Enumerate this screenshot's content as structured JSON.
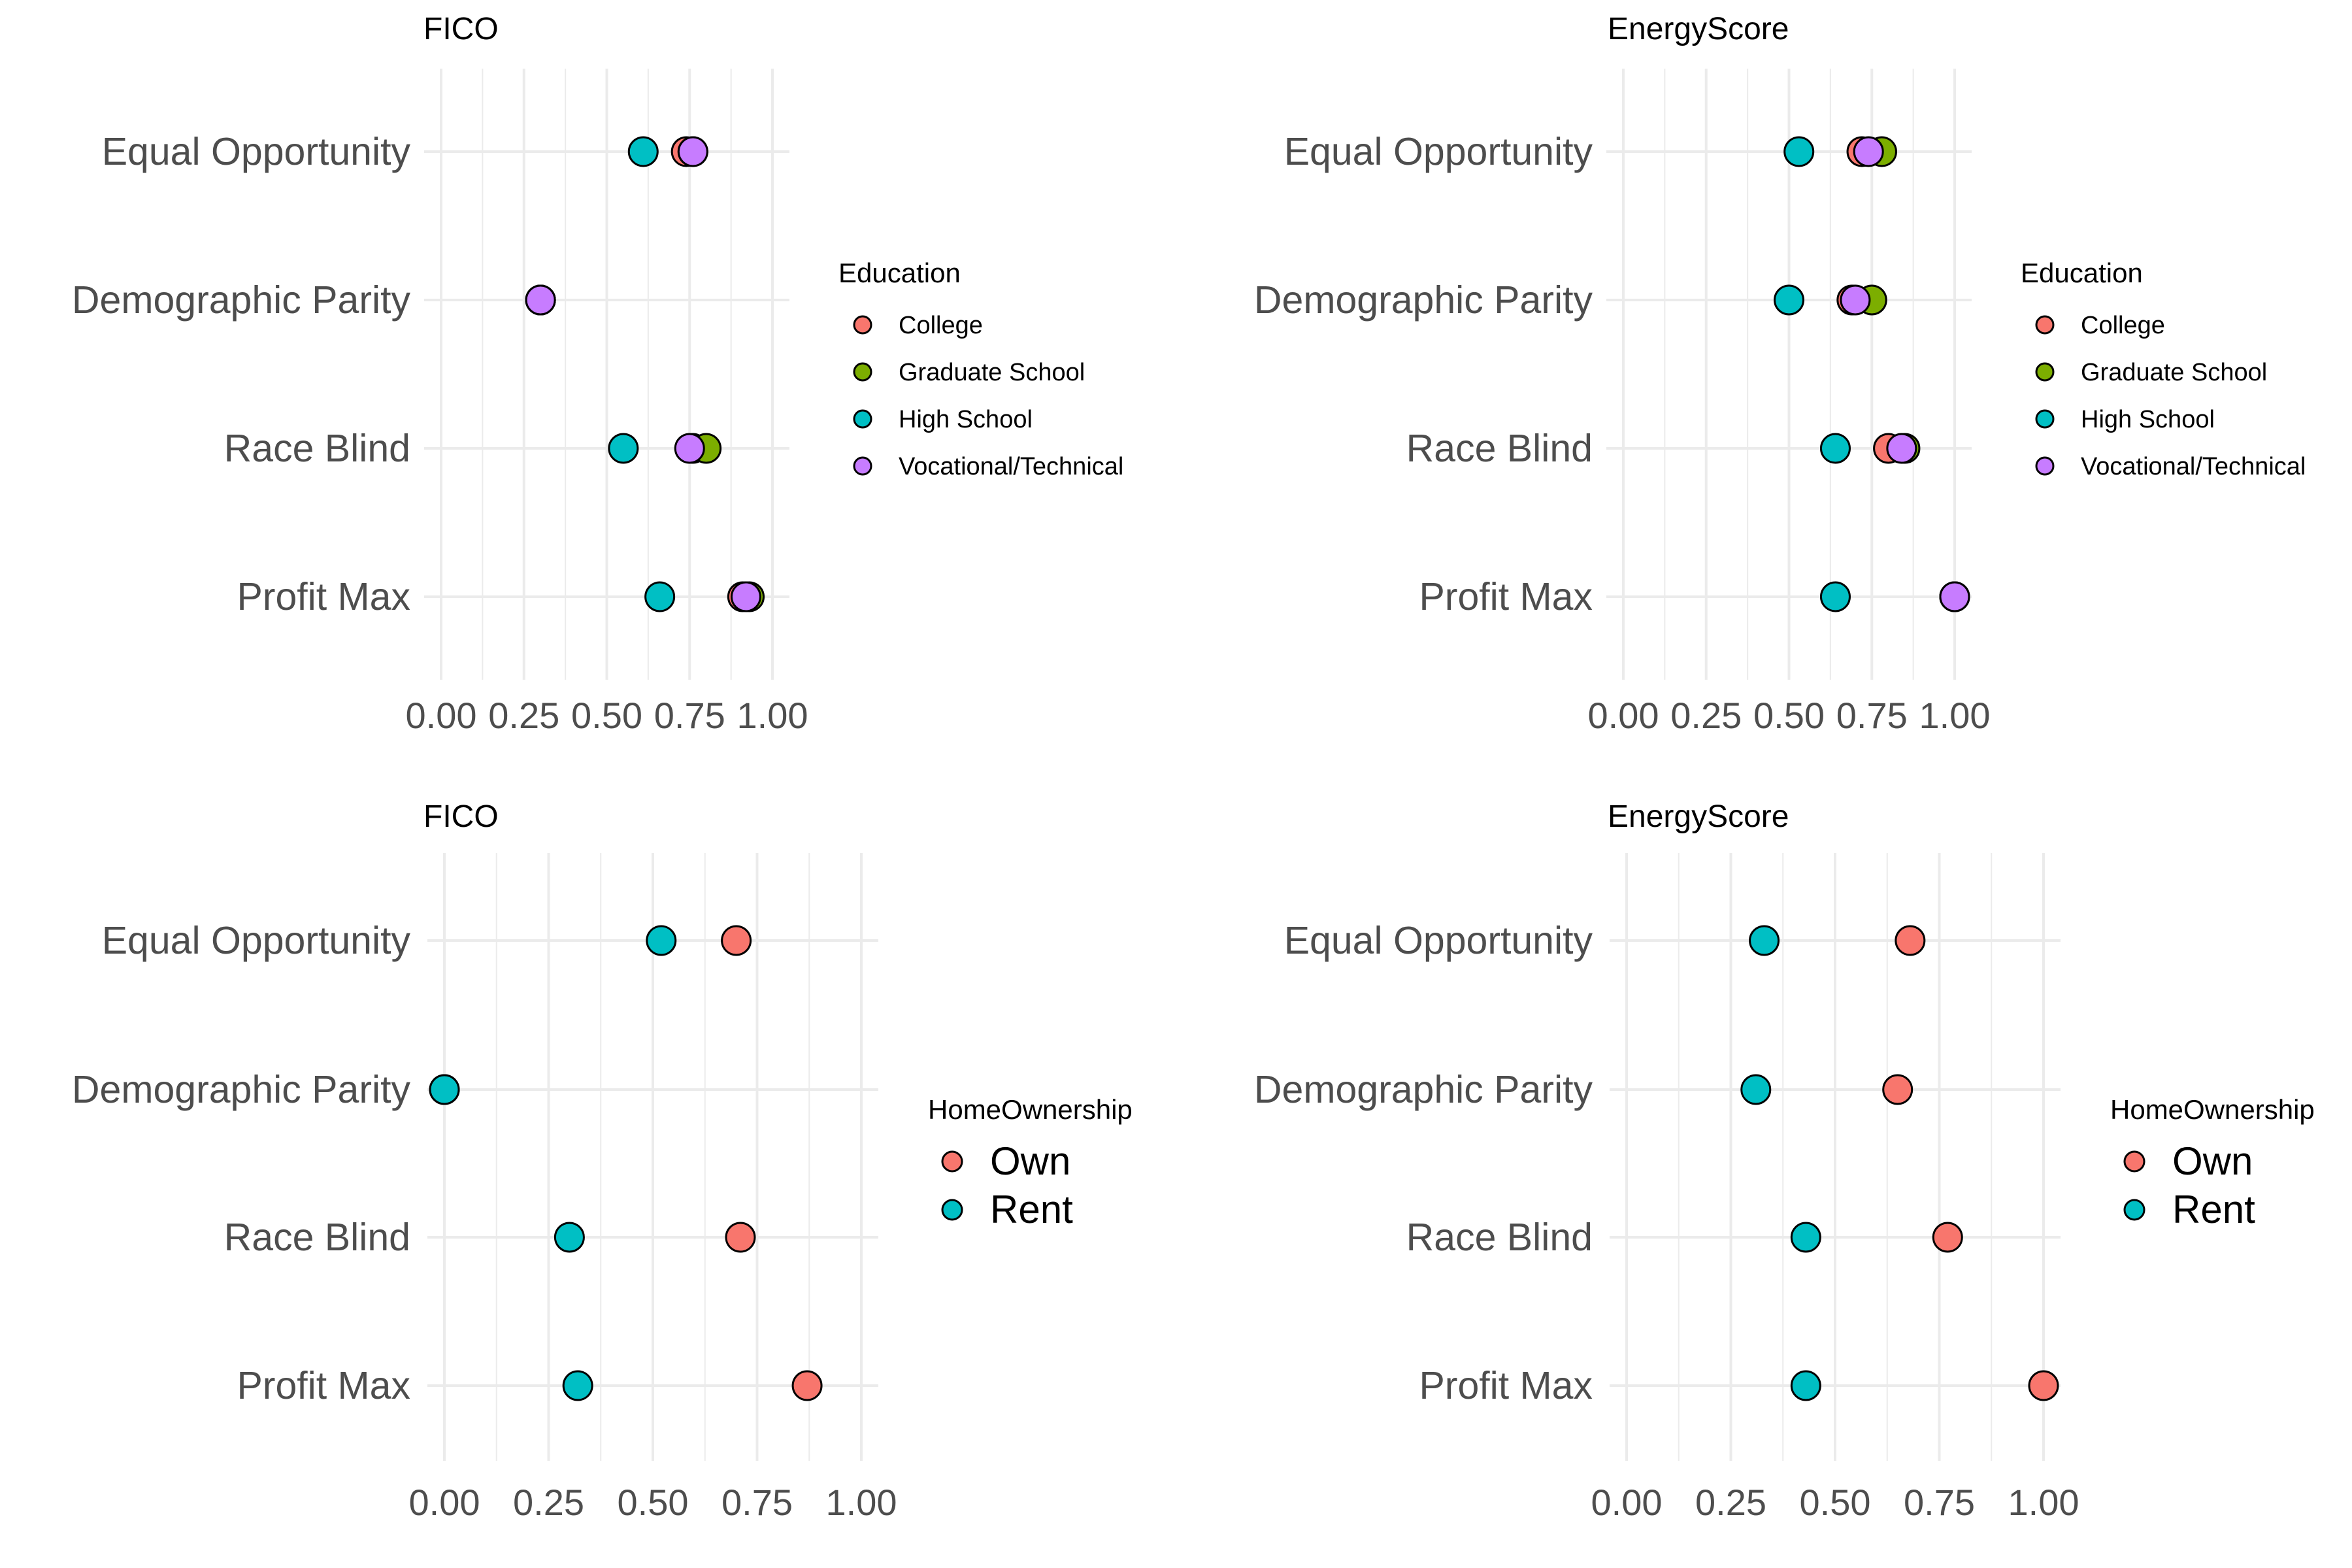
{
  "chart_data": [
    {
      "type": "scatter",
      "title": "FICO",
      "legend": {
        "title": "Education",
        "placement": "right",
        "size": "small",
        "entries": [
          {
            "name": "College",
            "color": "#F8766D"
          },
          {
            "name": "Graduate School",
            "color": "#7CAE00"
          },
          {
            "name": "High School",
            "color": "#00BFC4"
          },
          {
            "name": "Vocational/Technical",
            "color": "#C77CFF"
          }
        ]
      },
      "categories": [
        "Equal Opportunity",
        "Demographic Parity",
        "Race Blind",
        "Profit Max"
      ],
      "xlim": [
        0,
        1
      ],
      "xticks": [
        "0.00",
        "0.25",
        "0.50",
        "0.75",
        "1.00"
      ],
      "grid": true,
      "series": [
        {
          "name": "College",
          "values": [
            0.74,
            0.3,
            0.76,
            0.91
          ]
        },
        {
          "name": "Graduate School",
          "values": [
            0.76,
            0.3,
            0.8,
            0.93
          ]
        },
        {
          "name": "High School",
          "values": [
            0.61,
            0.3,
            0.55,
            0.66
          ]
        },
        {
          "name": "Vocational/Technical",
          "values": [
            0.76,
            0.3,
            0.75,
            0.92
          ]
        }
      ]
    },
    {
      "type": "scatter",
      "title": "EnergyScore",
      "legend": {
        "title": "Education",
        "placement": "right",
        "size": "small",
        "entries": [
          {
            "name": "College",
            "color": "#F8766D"
          },
          {
            "name": "Graduate School",
            "color": "#7CAE00"
          },
          {
            "name": "High School",
            "color": "#00BFC4"
          },
          {
            "name": "Vocational/Technical",
            "color": "#C77CFF"
          }
        ]
      },
      "categories": [
        "Equal Opportunity",
        "Demographic Parity",
        "Race Blind",
        "Profit Max"
      ],
      "xlim": [
        0,
        1
      ],
      "xticks": [
        "0.00",
        "0.25",
        "0.50",
        "0.75",
        "1.00"
      ],
      "grid": true,
      "series": [
        {
          "name": "College",
          "values": [
            0.72,
            0.69,
            0.8,
            1.0
          ]
        },
        {
          "name": "Graduate School",
          "values": [
            0.78,
            0.75,
            0.85,
            1.0
          ]
        },
        {
          "name": "High School",
          "values": [
            0.53,
            0.5,
            0.64,
            0.64
          ]
        },
        {
          "name": "Vocational/Technical",
          "values": [
            0.74,
            0.7,
            0.84,
            1.0
          ]
        }
      ]
    },
    {
      "type": "scatter",
      "title": "FICO",
      "legend": {
        "title": "HomeOwnership",
        "placement": "right",
        "size": "large",
        "entries": [
          {
            "name": "Own",
            "color": "#F8766D"
          },
          {
            "name": "Rent",
            "color": "#00BFC4"
          }
        ]
      },
      "categories": [
        "Equal Opportunity",
        "Demographic Parity",
        "Race Blind",
        "Profit Max"
      ],
      "xlim": [
        0,
        1
      ],
      "xticks": [
        "0.00",
        "0.25",
        "0.50",
        "0.75",
        "1.00"
      ],
      "grid": true,
      "series": [
        {
          "name": "Own",
          "values": [
            0.7,
            0.0,
            0.71,
            0.87
          ]
        },
        {
          "name": "Rent",
          "values": [
            0.52,
            0.0,
            0.3,
            0.32
          ]
        }
      ]
    },
    {
      "type": "scatter",
      "title": "EnergyScore",
      "legend": {
        "title": "HomeOwnership",
        "placement": "right",
        "size": "large",
        "entries": [
          {
            "name": "Own",
            "color": "#F8766D"
          },
          {
            "name": "Rent",
            "color": "#00BFC4"
          }
        ]
      },
      "categories": [
        "Equal Opportunity",
        "Demographic Parity",
        "Race Blind",
        "Profit Max"
      ],
      "xlim": [
        0,
        1
      ],
      "xticks": [
        "0.00",
        "0.25",
        "0.50",
        "0.75",
        "1.00"
      ],
      "grid": true,
      "series": [
        {
          "name": "Own",
          "values": [
            0.68,
            0.65,
            0.77,
            1.0
          ]
        },
        {
          "name": "Rent",
          "values": [
            0.33,
            0.31,
            0.43,
            0.43
          ]
        }
      ]
    }
  ]
}
